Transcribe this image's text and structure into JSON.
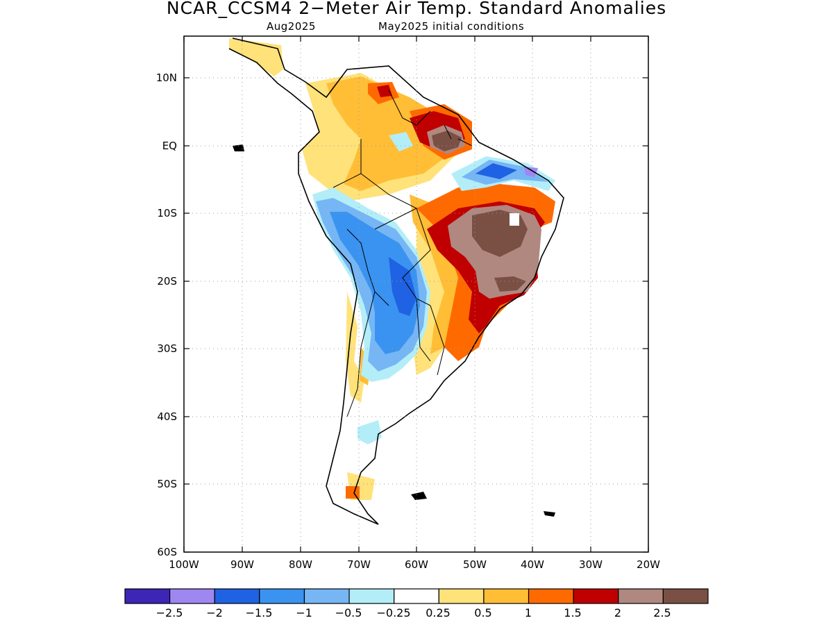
{
  "title": "NCAR_CCSM4 2−Meter Air Temp. Standard Anomalies",
  "subtitle_left": "Aug2025",
  "subtitle_right": "May2025 initial conditions",
  "axes": {
    "lon_ticks": [
      "100W",
      "90W",
      "80W",
      "70W",
      "60W",
      "50W",
      "40W",
      "30W",
      "20W"
    ],
    "lat_ticks": [
      "10N",
      "EQ",
      "10S",
      "20S",
      "30S",
      "40S",
      "50S",
      "60S"
    ],
    "lon_range": [
      -100,
      -20
    ],
    "lat_range": [
      -60,
      16
    ],
    "grid": "dotted"
  },
  "colorbar": {
    "colors": [
      "#3d25b5",
      "#9f87f2",
      "#1f62e3",
      "#3a93f0",
      "#76b6f5",
      "#b3eef8",
      "#ffffff",
      "#ffe27a",
      "#ffbe36",
      "#ff6a00",
      "#c00000",
      "#b08880",
      "#7a5044"
    ],
    "labels": [
      "−2.5",
      "−2",
      "−1.5",
      "−1",
      "−0.5",
      "−0.25",
      "0.25",
      "0.5",
      "1",
      "1.5",
      "2",
      "2.5"
    ]
  }
}
